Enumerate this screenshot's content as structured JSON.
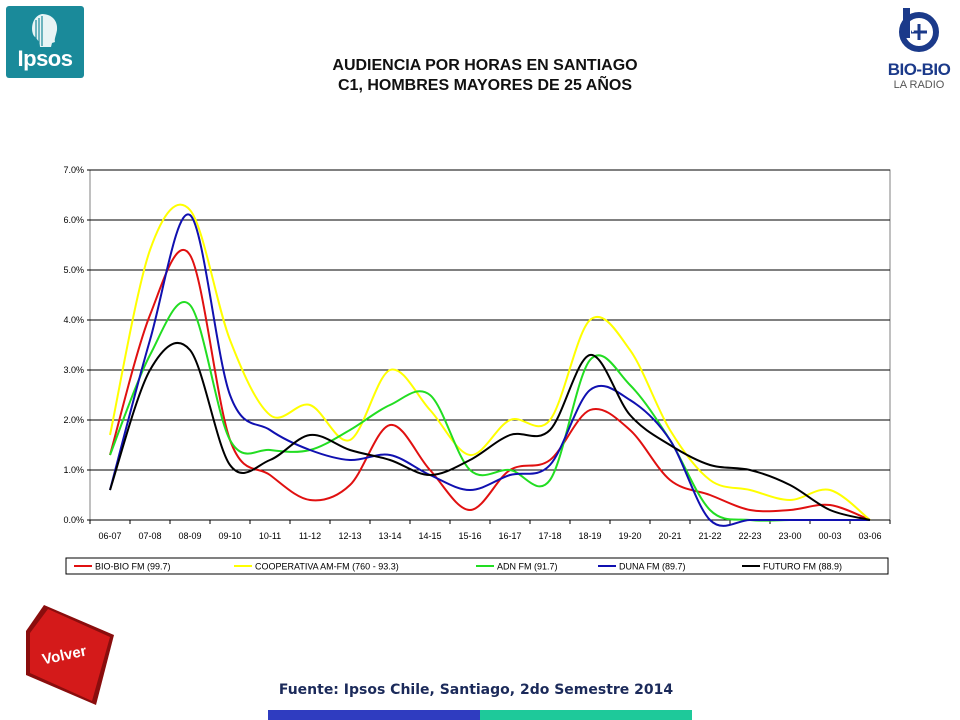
{
  "header": {
    "title_line1": "AUDIENCIA POR HORAS EN SANTIAGO",
    "title_line2": "C1, HOMBRES MAYORES DE 25 AÑOS",
    "logo_left_text": "Ipsos",
    "logo_right_text": "BIO-BIO",
    "logo_right_sub": "LA RADIO"
  },
  "footer": {
    "source": "Fuente: Ipsos Chile, Santiago, 2do Semestre 2014",
    "back_button": "Volver"
  },
  "colors": {
    "background": "#ffffff",
    "gridline": "#000000",
    "ipsos": "#1a8a9a",
    "volver": "#d41a1a",
    "bar_blue": "#2f3cc0",
    "bar_teal": "#1ec99a"
  },
  "chart_data": {
    "type": "line",
    "title": "",
    "xlabel": "",
    "ylabel": "",
    "ylim": [
      0,
      0.07
    ],
    "yticks": [
      "0.0%",
      "1.0%",
      "2.0%",
      "3.0%",
      "4.0%",
      "5.0%",
      "6.0%",
      "7.0%"
    ],
    "grid": true,
    "legend_position": "bottom",
    "categories": [
      "06-07",
      "07-08",
      "08-09",
      "09-10",
      "10-11",
      "11-12",
      "12-13",
      "13-14",
      "14-15",
      "15-16",
      "16-17",
      "17-18",
      "18-19",
      "19-20",
      "20-21",
      "21-22",
      "22-23",
      "23-00",
      "00-03",
      "03-06"
    ],
    "series": [
      {
        "name": "BIO-BIO FM (99.7)",
        "color": "#e01010",
        "values": [
          0.013,
          0.041,
          0.053,
          0.016,
          0.009,
          0.004,
          0.007,
          0.019,
          0.01,
          0.002,
          0.01,
          0.012,
          0.022,
          0.018,
          0.008,
          0.005,
          0.002,
          0.002,
          0.003,
          0.0
        ]
      },
      {
        "name": "COOPERATIVA AM-FM (760 - 93.3)",
        "color": "#ffff00",
        "values": [
          0.017,
          0.054,
          0.062,
          0.036,
          0.021,
          0.023,
          0.016,
          0.03,
          0.022,
          0.013,
          0.02,
          0.02,
          0.04,
          0.034,
          0.018,
          0.008,
          0.006,
          0.004,
          0.006,
          0.0
        ]
      },
      {
        "name": "ADN FM (91.7)",
        "color": "#22dd22",
        "values": [
          0.013,
          0.033,
          0.043,
          0.016,
          0.014,
          0.014,
          0.018,
          0.023,
          0.025,
          0.01,
          0.01,
          0.008,
          0.032,
          0.027,
          0.016,
          0.002,
          0.0,
          0.0,
          0.0,
          0.0
        ]
      },
      {
        "name": "DUNA FM (89.7)",
        "color": "#1010b0",
        "values": [
          0.006,
          0.036,
          0.061,
          0.025,
          0.018,
          0.014,
          0.012,
          0.013,
          0.009,
          0.006,
          0.009,
          0.011,
          0.026,
          0.024,
          0.016,
          0.0,
          0.0,
          0.0,
          0.0,
          0.0
        ]
      },
      {
        "name": "FUTURO FM (88.9)",
        "color": "#000000",
        "values": [
          0.006,
          0.03,
          0.034,
          0.011,
          0.012,
          0.017,
          0.014,
          0.012,
          0.009,
          0.012,
          0.017,
          0.018,
          0.033,
          0.021,
          0.015,
          0.011,
          0.01,
          0.007,
          0.002,
          0.0
        ]
      }
    ]
  }
}
